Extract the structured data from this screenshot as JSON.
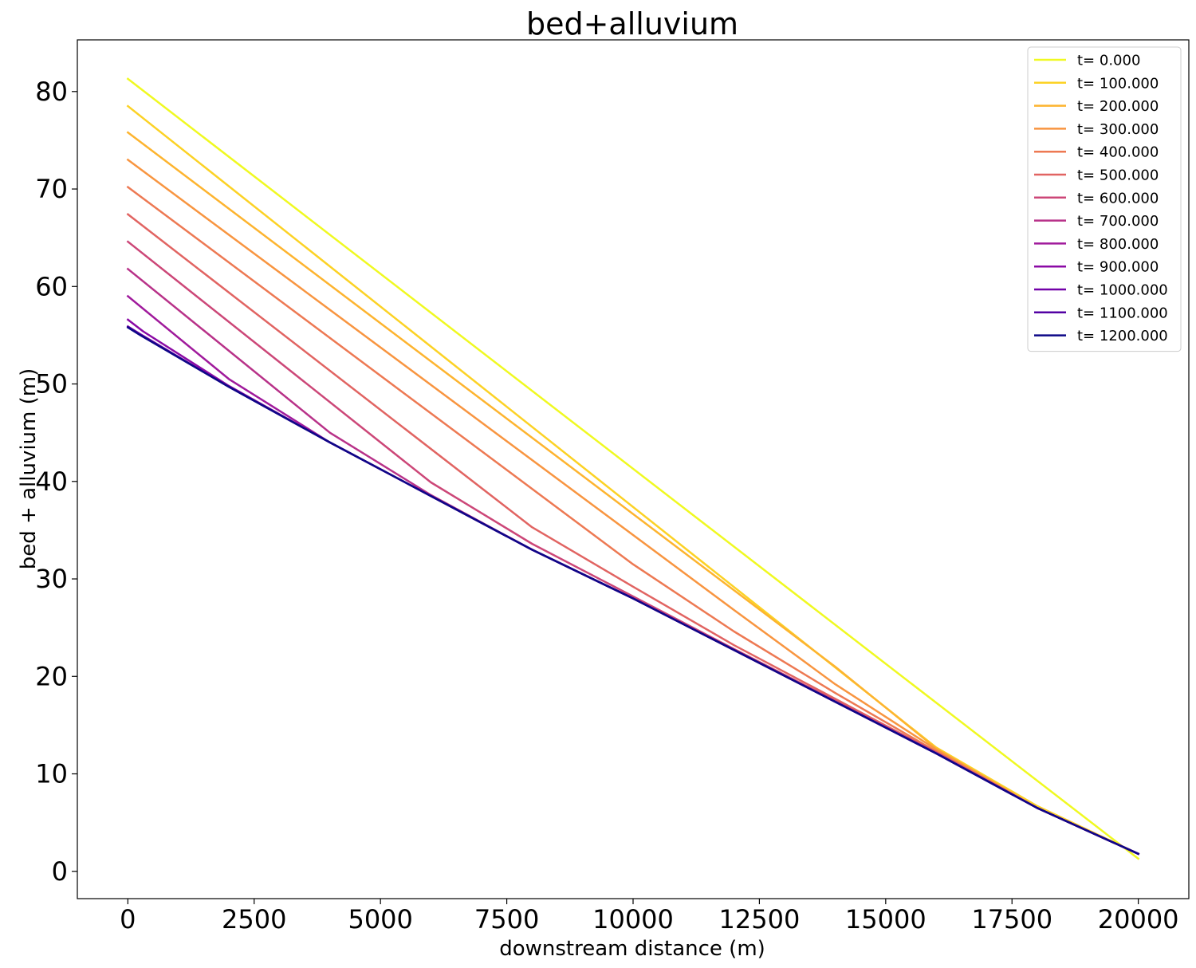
{
  "chart_data": {
    "type": "line",
    "title": "bed+alluvium",
    "xlabel": "downstream distance (m)",
    "ylabel": "bed + alluvium (m)",
    "xlim": [
      -1000,
      21000
    ],
    "ylim": [
      -2.8,
      85.3
    ],
    "xticks": [
      0,
      2500,
      5000,
      7500,
      10000,
      12500,
      15000,
      17500,
      20000
    ],
    "yticks": [
      0,
      10,
      20,
      30,
      40,
      50,
      60,
      70,
      80
    ],
    "grid": false,
    "legend_position": "top-right",
    "series": [
      {
        "name": "t= 0.000",
        "color": "#f0f921",
        "points": [
          [
            0,
            81.3
          ],
          [
            20000,
            1.3
          ]
        ]
      },
      {
        "name": "t= 100.000",
        "color": "#fcd225",
        "points": [
          [
            0,
            78.5
          ],
          [
            16000,
            12.7
          ],
          [
            18000,
            6.7
          ],
          [
            20000,
            1.8
          ]
        ]
      },
      {
        "name": "t= 200.000",
        "color": "#fdb42f",
        "points": [
          [
            0,
            75.8
          ],
          [
            14000,
            21.0
          ],
          [
            16000,
            12.6
          ],
          [
            18000,
            6.5
          ],
          [
            20000,
            1.8
          ]
        ]
      },
      {
        "name": "t= 300.000",
        "color": "#f89540",
        "points": [
          [
            0,
            73.0
          ],
          [
            12000,
            26.8
          ],
          [
            14000,
            19.2
          ],
          [
            16000,
            12.5
          ],
          [
            18000,
            6.5
          ],
          [
            20000,
            1.8
          ]
        ]
      },
      {
        "name": "t= 400.000",
        "color": "#ed7953",
        "points": [
          [
            0,
            70.2
          ],
          [
            10000,
            31.5
          ],
          [
            12000,
            24.6
          ],
          [
            14000,
            18.3
          ],
          [
            16000,
            12.3
          ],
          [
            18000,
            6.5
          ],
          [
            20000,
            1.8
          ]
        ]
      },
      {
        "name": "t= 500.000",
        "color": "#e16462",
        "points": [
          [
            0,
            67.4
          ],
          [
            8000,
            35.3
          ],
          [
            10000,
            29.2
          ],
          [
            12000,
            23.2
          ],
          [
            14000,
            17.7
          ],
          [
            16000,
            12.2
          ],
          [
            18000,
            6.5
          ],
          [
            20000,
            1.8
          ]
        ]
      },
      {
        "name": "t= 600.000",
        "color": "#cc4778",
        "points": [
          [
            0,
            64.6
          ],
          [
            6000,
            39.9
          ],
          [
            8000,
            33.6
          ],
          [
            10000,
            28.2
          ],
          [
            12000,
            22.8
          ],
          [
            14000,
            17.5
          ],
          [
            16000,
            12.2
          ],
          [
            18000,
            6.5
          ],
          [
            20000,
            1.8
          ]
        ]
      },
      {
        "name": "t= 700.000",
        "color": "#b83289",
        "points": [
          [
            0,
            61.8
          ],
          [
            4000,
            45.0
          ],
          [
            6000,
            38.6
          ],
          [
            8000,
            33.0
          ],
          [
            10000,
            28.0
          ],
          [
            12000,
            22.7
          ],
          [
            14000,
            17.4
          ],
          [
            16000,
            12.1
          ],
          [
            18000,
            6.5
          ],
          [
            20000,
            1.8
          ]
        ]
      },
      {
        "name": "t= 800.000",
        "color": "#a01a9c",
        "points": [
          [
            0,
            59.0
          ],
          [
            2000,
            50.5
          ],
          [
            4000,
            44.0
          ],
          [
            6000,
            38.5
          ],
          [
            8000,
            33.0
          ],
          [
            10000,
            28.0
          ],
          [
            12000,
            22.7
          ],
          [
            14000,
            17.4
          ],
          [
            16000,
            12.1
          ],
          [
            18000,
            6.5
          ],
          [
            20000,
            1.8
          ]
        ]
      },
      {
        "name": "t= 900.000",
        "color": "#8b0aa5",
        "points": [
          [
            0,
            56.6
          ],
          [
            300,
            55.4
          ],
          [
            2000,
            49.8
          ],
          [
            4000,
            44.0
          ],
          [
            6000,
            38.5
          ],
          [
            8000,
            33.0
          ],
          [
            10000,
            28.0
          ],
          [
            12000,
            22.7
          ],
          [
            14000,
            17.4
          ],
          [
            16000,
            12.1
          ],
          [
            18000,
            6.5
          ],
          [
            20000,
            1.8
          ]
        ]
      },
      {
        "name": "t= 1000.000",
        "color": "#7201a8",
        "points": [
          [
            0,
            55.9
          ],
          [
            250,
            55.1
          ],
          [
            2000,
            49.7
          ],
          [
            4000,
            44.0
          ],
          [
            6000,
            38.5
          ],
          [
            8000,
            33.0
          ],
          [
            10000,
            28.0
          ],
          [
            12000,
            22.7
          ],
          [
            14000,
            17.4
          ],
          [
            16000,
            12.1
          ],
          [
            18000,
            6.5
          ],
          [
            20000,
            1.8
          ]
        ]
      },
      {
        "name": "t= 1100.000",
        "color": "#5302a3",
        "points": [
          [
            0,
            55.8
          ],
          [
            250,
            55.0
          ],
          [
            2000,
            49.7
          ],
          [
            4000,
            44.0
          ],
          [
            6000,
            38.5
          ],
          [
            8000,
            33.0
          ],
          [
            10000,
            28.0
          ],
          [
            12000,
            22.7
          ],
          [
            14000,
            17.4
          ],
          [
            16000,
            12.1
          ],
          [
            18000,
            6.5
          ],
          [
            20000,
            1.8
          ]
        ]
      },
      {
        "name": "t= 1200.000",
        "color": "#0d0887",
        "points": [
          [
            0,
            55.8
          ],
          [
            250,
            55.0
          ],
          [
            2000,
            49.7
          ],
          [
            4000,
            44.0
          ],
          [
            6000,
            38.5
          ],
          [
            8000,
            33.0
          ],
          [
            10000,
            28.0
          ],
          [
            12000,
            22.7
          ],
          [
            14000,
            17.4
          ],
          [
            16000,
            12.1
          ],
          [
            18000,
            6.5
          ],
          [
            20000,
            1.8
          ]
        ]
      }
    ]
  }
}
